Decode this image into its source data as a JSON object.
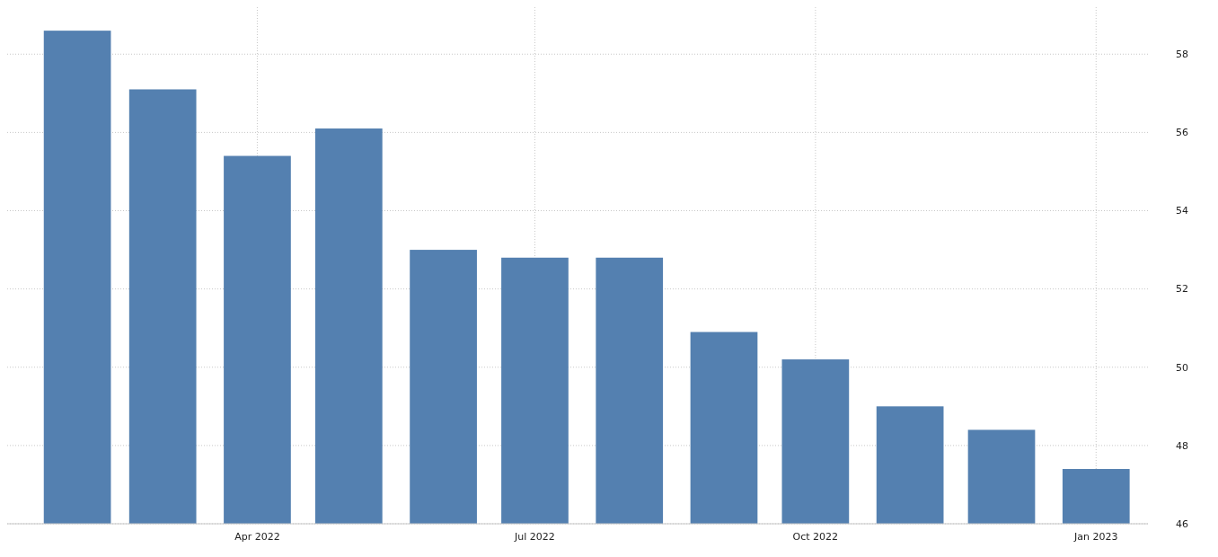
{
  "chart_data": {
    "type": "bar",
    "x": [
      "2022-02",
      "2022-03",
      "2022-04",
      "2022-05",
      "2022-06",
      "2022-07",
      "2022-08",
      "2022-09",
      "2022-10",
      "2022-11",
      "2022-12",
      "2023-01"
    ],
    "values": [
      58.6,
      57.1,
      55.4,
      56.1,
      53.0,
      52.8,
      52.8,
      50.9,
      50.2,
      49.0,
      48.4,
      47.4
    ],
    "color": "#5480b0",
    "xlim": [
      "2022-01-09",
      "2023-01-18"
    ],
    "xticks": [
      {
        "value": "2022-04",
        "label": "Apr 2022"
      },
      {
        "value": "2022-07",
        "label": "Jul 2022"
      },
      {
        "value": "2022-10",
        "label": "Oct 2022"
      },
      {
        "value": "2023-01",
        "label": "Jan 2023"
      }
    ],
    "ylim": [
      46,
      59.2
    ],
    "yticks": [
      46,
      48,
      50,
      52,
      54,
      56,
      58
    ],
    "grid": true
  }
}
